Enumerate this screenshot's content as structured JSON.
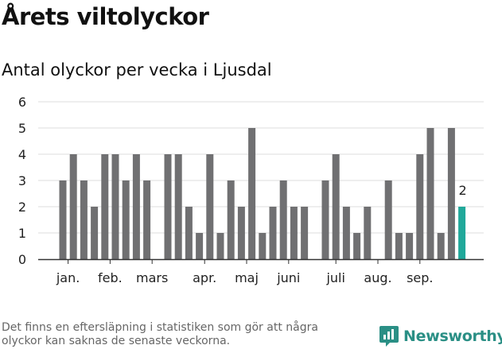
{
  "title": "Årets viltolyckor",
  "subtitle": "Antal olyckor per vecka i Ljusdal",
  "footnote": "Det finns en eftersläpning i statistiken som gör att några olyckor kan saknas de senaste veckorna.",
  "brand": {
    "name": "Newsworthy",
    "icon": "newsworthy-logo-icon",
    "color": "#2a8f85"
  },
  "colors": {
    "bar": "#707072",
    "highlight": "#20a89a",
    "grid": "#dddddd",
    "axis": "#333333"
  },
  "chart_data": {
    "type": "bar",
    "title": "Antal olyckor per vecka i Ljusdal",
    "xlabel": "",
    "ylabel": "",
    "ylim": [
      0,
      6
    ],
    "yticks": [
      0,
      1,
      2,
      3,
      4,
      5,
      6
    ],
    "grid": true,
    "x_axis": "weeks of the year",
    "weeks": [
      1,
      2,
      3,
      4,
      5,
      6,
      7,
      8,
      9,
      10,
      11,
      12,
      13,
      14,
      15,
      16,
      17,
      18,
      19,
      20,
      21,
      22,
      23,
      24,
      25,
      26,
      27,
      28,
      29,
      30,
      31,
      32,
      33,
      34,
      35,
      36,
      37,
      38,
      39
    ],
    "values": [
      3,
      4,
      3,
      2,
      4,
      4,
      3,
      4,
      3,
      0,
      4,
      4,
      2,
      1,
      4,
      1,
      3,
      2,
      5,
      1,
      2,
      3,
      2,
      2,
      0,
      3,
      4,
      2,
      1,
      2,
      0,
      3,
      1,
      1,
      4,
      5,
      1,
      5,
      2
    ],
    "highlight_index": 38,
    "highlight_label": "2",
    "month_labels": [
      {
        "label": "jan.",
        "week": 1.5
      },
      {
        "label": "feb.",
        "week": 5.5
      },
      {
        "label": "mars",
        "week": 9.5
      },
      {
        "label": "apr.",
        "week": 14.5
      },
      {
        "label": "maj",
        "week": 18.5
      },
      {
        "label": "juni",
        "week": 22.5
      },
      {
        "label": "juli",
        "week": 27
      },
      {
        "label": "aug.",
        "week": 31
      },
      {
        "label": "sep.",
        "week": 35
      }
    ]
  }
}
